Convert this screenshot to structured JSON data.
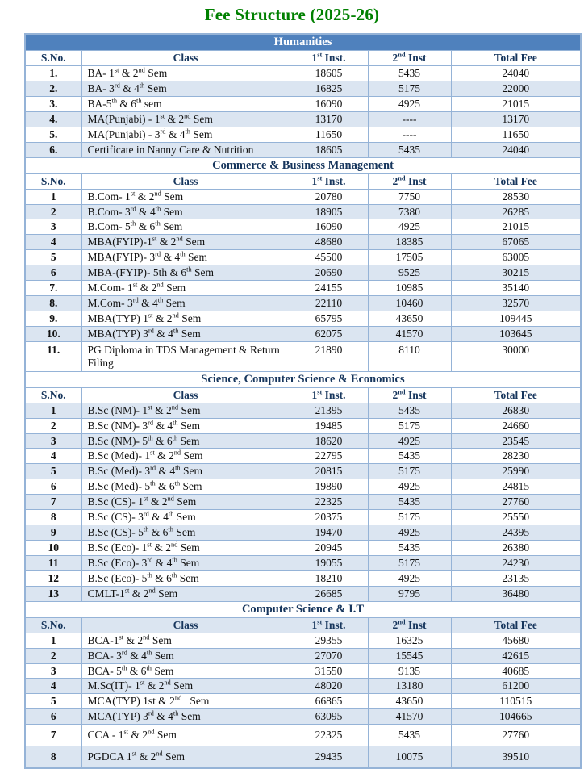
{
  "page_title": "Fee Structure (2025-26)",
  "colors": {
    "title_green": "#008000",
    "section_band_blue": "#4F81BD",
    "row_shade_blue": "#DBE5F1",
    "border_blue": "#95B3D7",
    "header_text_navy": "#17365D"
  },
  "columns": [
    "S.No.",
    "Class",
    "1^st^ Inst.",
    "2^nd^ Inst",
    "Total Fee"
  ],
  "sections": [
    {
      "title": "Humanities",
      "title_style": "blue",
      "header_shaded": false,
      "rows": [
        {
          "sno": "1.",
          "class": "BA- 1^st^ & 2^nd^ Sem",
          "inst1": "18605",
          "inst2": "5435",
          "total": "24040",
          "shade": false
        },
        {
          "sno": "2.",
          "class": "BA- 3^rd^ & 4^th^ Sem",
          "inst1": "16825",
          "inst2": "5175",
          "total": "22000",
          "shade": true
        },
        {
          "sno": "3.",
          "class": "BA-5^th^ & 6^th^ sem",
          "inst1": "16090",
          "inst2": "4925",
          "total": "21015",
          "shade": false
        },
        {
          "sno": "4.",
          "class": "MA(Punjabi) - 1^st^ & 2^nd^ Sem",
          "inst1": "13170",
          "inst2": "----",
          "total": "13170",
          "shade": true
        },
        {
          "sno": "5.",
          "class": "MA(Punjabi) - 3^rd^ & 4^th^ Sem",
          "inst1": "11650",
          "inst2": "----",
          "total": "11650",
          "shade": false
        },
        {
          "sno": "6.",
          "class": "Certificate in Nanny Care & Nutrition",
          "inst1": "18605",
          "inst2": "5435",
          "total": "24040",
          "shade": true
        }
      ]
    },
    {
      "title": "Commerce & Business Management",
      "title_style": "plain",
      "header_shaded": false,
      "rows": [
        {
          "sno": "1",
          "class": "B.Com- 1^st^ & 2^nd^ Sem",
          "inst1": "20780",
          "inst2": "7750",
          "total": "28530",
          "shade": false
        },
        {
          "sno": "2",
          "class": "B.Com- 3^rd^ & 4^th^ Sem",
          "inst1": "18905",
          "inst2": "7380",
          "total": "26285",
          "shade": true
        },
        {
          "sno": "3",
          "class": "B.Com- 5^th^ & 6^th^ Sem",
          "inst1": "16090",
          "inst2": "4925",
          "total": "21015",
          "shade": false
        },
        {
          "sno": "4",
          "class": "MBA(FYIP)-1^st^ & 2^nd^ Sem",
          "inst1": "48680",
          "inst2": "18385",
          "total": "67065",
          "shade": true
        },
        {
          "sno": "5",
          "class": "MBA(FYIP)- 3^rd^ & 4^th^ Sem",
          "inst1": "45500",
          "inst2": "17505",
          "total": "63005",
          "shade": false
        },
        {
          "sno": "6",
          "class": "MBA-(FYIP)- 5th & 6^th^ Sem",
          "inst1": "20690",
          "inst2": "9525",
          "total": "30215",
          "shade": true
        },
        {
          "sno": "7.",
          "class": "M.Com- 1^st^  & 2^nd^ Sem",
          "inst1": "24155",
          "inst2": "10985",
          "total": "35140",
          "shade": false
        },
        {
          "sno": "8.",
          "class": "M.Com- 3^rd^ & 4^th^ Sem",
          "inst1": "22110",
          "inst2": "10460",
          "total": "32570",
          "shade": true
        },
        {
          "sno": "9.",
          "class": "MBA(TYP) 1^st^ & 2^nd^ Sem",
          "inst1": "65795",
          "inst2": "43650",
          "total": "109445",
          "shade": false
        },
        {
          "sno": "10.",
          "class": "MBA(TYP) 3^rd^ & 4^th^ Sem",
          "inst1": "62075",
          "inst2": "41570",
          "total": "103645",
          "shade": true
        },
        {
          "sno": "11.",
          "class": "PG Diploma in TDS Management & Return Filing",
          "inst1": "21890",
          "inst2": "8110",
          "total": "30000",
          "shade": false,
          "multiline": true
        }
      ]
    },
    {
      "title": "Science, Computer Science & Economics",
      "title_style": "plain",
      "header_shaded": false,
      "rows": [
        {
          "sno": "1",
          "class": "B.Sc (NM)- 1^st^ & 2^nd^ Sem",
          "inst1": "21395",
          "inst2": "5435",
          "total": "26830",
          "shade": true
        },
        {
          "sno": "2",
          "class": "B.Sc (NM)- 3^rd^ & 4^th^ Sem",
          "inst1": "19485",
          "inst2": "5175",
          "total": "24660",
          "shade": false
        },
        {
          "sno": "3",
          "class": "B.Sc (NM)- 5^th^ & 6^th^ Sem",
          "inst1": "18620",
          "inst2": "4925",
          "total": "23545",
          "shade": true
        },
        {
          "sno": "4",
          "class": "B.Sc (Med)- 1^st^ & 2^nd^ Sem",
          "inst1": "22795",
          "inst2": "5435",
          "total": "28230",
          "shade": false
        },
        {
          "sno": "5",
          "class": "B.Sc (Med)- 3^rd^ & 4^th^ Sem",
          "inst1": "20815",
          "inst2": "5175",
          "total": "25990",
          "shade": true
        },
        {
          "sno": "6",
          "class": "B.Sc (Med)- 5^th^ & 6^th^ Sem",
          "inst1": "19890",
          "inst2": "4925",
          "total": "24815",
          "shade": false
        },
        {
          "sno": "7",
          "class": "B.Sc (CS)- 1^st^ & 2^nd^ Sem",
          "inst1": "22325",
          "inst2": "5435",
          "total": "27760",
          "shade": true
        },
        {
          "sno": "8",
          "class": "B.Sc (CS)- 3^rd^ & 4^th^ Sem",
          "inst1": "20375",
          "inst2": "5175",
          "total": "25550",
          "shade": false
        },
        {
          "sno": "9",
          "class": "B.Sc (CS)- 5^th^ & 6^th^ Sem",
          "inst1": "19470",
          "inst2": "4925",
          "total": "24395",
          "shade": true
        },
        {
          "sno": "10",
          "class": "B.Sc (Eco)- 1^st^ & 2^nd^ Sem",
          "inst1": "20945",
          "inst2": "5435",
          "total": "26380",
          "shade": false
        },
        {
          "sno": "11",
          "class": "B.Sc (Eco)- 3^rd^ & 4^th^ Sem",
          "inst1": "19055",
          "inst2": "5175",
          "total": "24230",
          "shade": true
        },
        {
          "sno": "12",
          "class": "B.Sc (Eco)- 5^th^ & 6^th^ Sem",
          "inst1": "18210",
          "inst2": "4925",
          "total": "23135",
          "shade": false
        },
        {
          "sno": "13",
          "class": "CMLT-1^st^ & 2^nd^ Sem",
          "inst1": "26685",
          "inst2": "9795",
          "total": "36480",
          "shade": true
        }
      ]
    },
    {
      "title": "Computer Science & I.T",
      "title_style": "plain",
      "header_shaded": true,
      "rows": [
        {
          "sno": "1",
          "class": "BCA-1^st^ & 2^nd^ Sem",
          "inst1": "29355",
          "inst2": "16325",
          "total": "45680",
          "shade": false
        },
        {
          "sno": "2",
          "class": "BCA- 3^rd^ & 4^th^ Sem",
          "inst1": "27070",
          "inst2": "15545",
          "total": "42615",
          "shade": true
        },
        {
          "sno": "3",
          "class": "BCA- 5^th^ & 6^th^ Sem",
          "inst1": "31550",
          "inst2": "9135",
          "total": "40685",
          "shade": false
        },
        {
          "sno": "4",
          "class": "M.Sc(IT)- 1^st^ & 2^nd^ Sem",
          "inst1": "48020",
          "inst2": "13180",
          "total": "61200",
          "shade": true
        },
        {
          "sno": "5",
          "class": "MCA(TYP) 1st & 2^nd^   Sem",
          "inst1": "66865",
          "inst2": "43650",
          "total": "110515",
          "shade": false
        },
        {
          "sno": "6",
          "class": "MCA(TYP) 3^rd^ & 4^th^ Sem",
          "inst1": "63095",
          "inst2": "41570",
          "total": "104665",
          "shade": true
        },
        {
          "sno": "7",
          "class": "CCA - 1^st^ & 2^nd^ Sem",
          "inst1": "22325",
          "inst2": "5435",
          "total": "27760",
          "shade": false,
          "tall": true
        },
        {
          "sno": "8",
          "class": "PGDCA 1^st^ & 2^nd^ Sem",
          "inst1": "29435",
          "inst2": "10075",
          "total": "39510",
          "shade": true,
          "tall": true
        }
      ]
    }
  ]
}
